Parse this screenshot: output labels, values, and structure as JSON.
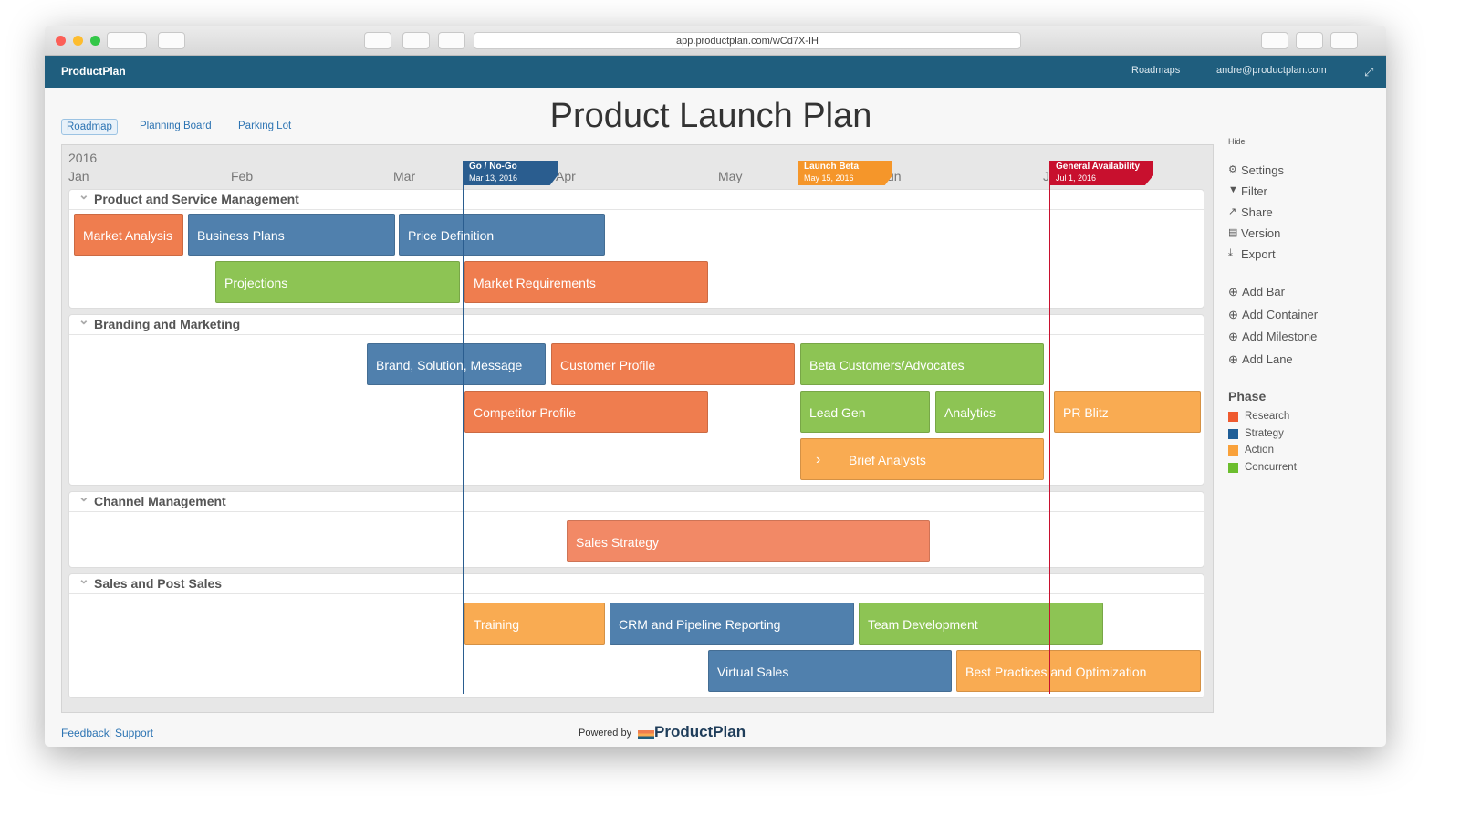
{
  "browser": {
    "url": "app.productplan.com/wCd7X-IH"
  },
  "header": {
    "brand": "ProductPlan",
    "nav": [
      "Roadmaps",
      "andre@productplan.com"
    ]
  },
  "tabs": [
    "Roadmap",
    "Planning Board",
    "Parking Lot"
  ],
  "title": "Product Launch Plan",
  "timeline": {
    "year": "2016",
    "months": [
      "Jan",
      "Feb",
      "Mar",
      "Apr",
      "May",
      "Jun",
      "Jul"
    ]
  },
  "milestones": [
    {
      "name": "Go / No-Go",
      "date": "Mar 13, 2016"
    },
    {
      "name": "Launch Beta",
      "date": "May 15, 2016"
    },
    {
      "name": "General Availability",
      "date": "Jul 1, 2016"
    }
  ],
  "lanes": [
    {
      "name": "Product and Service Management",
      "bars": [
        "Market Analysis",
        "Business Plans",
        "Price Definition",
        "Projections",
        "Market Requirements"
      ]
    },
    {
      "name": "Branding and Marketing",
      "bars": [
        "Brand, Solution, Message",
        "Customer Profile",
        "Beta Customers/Advocates",
        "Competitor Profile",
        "Lead Gen",
        "Analytics",
        "PR Blitz",
        "Brief Analysts"
      ]
    },
    {
      "name": "Channel Management",
      "bars": [
        "Sales Strategy"
      ]
    },
    {
      "name": "Sales and Post Sales",
      "bars": [
        "Training",
        "CRM and Pipeline Reporting",
        "Team Development",
        "Virtual Sales",
        "Best Practices and Optimization"
      ]
    }
  ],
  "sidebar": {
    "hide": "Hide",
    "actions": [
      "Settings",
      "Filter",
      "Share",
      "Version",
      "Export"
    ],
    "add": [
      "Add Bar",
      "Add Container",
      "Add Milestone",
      "Add Lane"
    ],
    "legend": {
      "title": "Phase",
      "items": [
        "Research",
        "Strategy",
        "Action",
        "Concurrent"
      ]
    }
  },
  "footer": {
    "links": [
      "Feedback",
      "Support"
    ],
    "powered": "Powered by",
    "brand": "ProductPlan"
  }
}
